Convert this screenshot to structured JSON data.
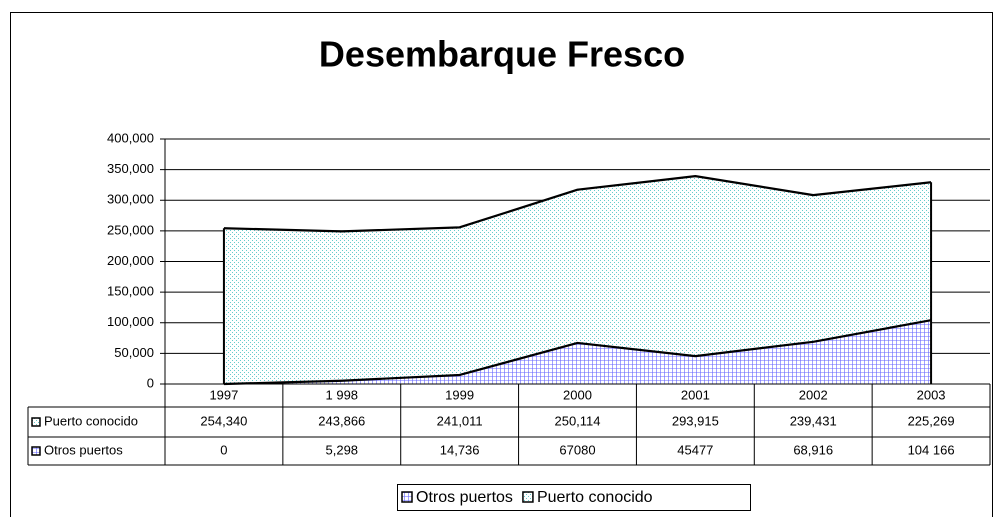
{
  "chart_data": {
    "type": "area",
    "stacked": true,
    "title": "Desembarque Fresco",
    "categories": [
      "1997",
      "1 998",
      "1999",
      "2000",
      "2001",
      "2002",
      "2003"
    ],
    "series": [
      {
        "name": "Otros puertos",
        "color": "#6666ff",
        "values": [
          0,
          5298,
          14736,
          67080,
          45477,
          68916,
          104166
        ],
        "value_labels": [
          "0",
          "5,298",
          "14,736",
          "67080",
          "45477",
          "68,916",
          "104 166"
        ]
      },
      {
        "name": "Puerto conocido",
        "color": "#66cccc",
        "values": [
          254340,
          243866,
          241011,
          250114,
          293915,
          239431,
          225269
        ],
        "value_labels": [
          "254,340",
          "243,866",
          "241,011",
          "250,114",
          "293,915",
          "239,431",
          "225,269"
        ]
      }
    ],
    "ylim": [
      0,
      400000
    ],
    "yticks": [
      0,
      {
        "value": 50000,
        "label": "50,000"
      },
      {
        "value": 100000,
        "label": "100,000"
      },
      {
        "value": 150000,
        "label": "150,000"
      },
      {
        "value": 200000,
        "label": "200,000"
      },
      {
        "value": 250000,
        "label": "250,000"
      },
      {
        "value": 300000,
        "label": "300,000"
      },
      {
        "value": 350000,
        "label": "350,000"
      },
      {
        "value": 400000,
        "label": "400,000"
      }
    ],
    "grid": true,
    "legend": "bottom"
  }
}
